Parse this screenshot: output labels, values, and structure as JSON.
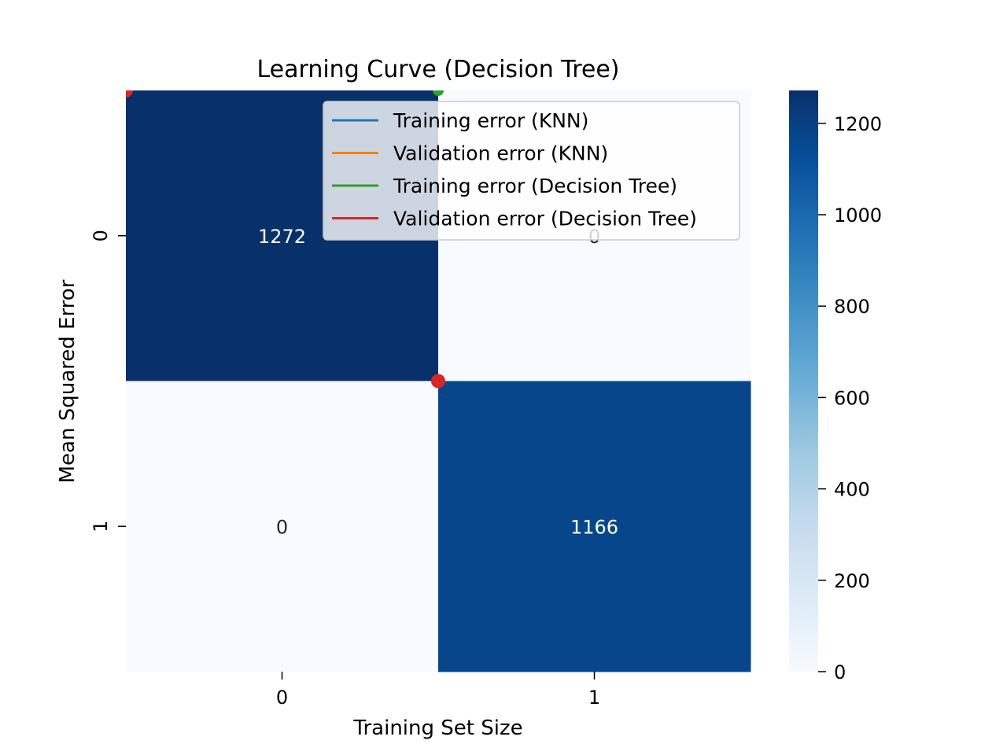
{
  "chart_data": {
    "type": "heatmap",
    "title": "Learning Curve (Decision Tree)",
    "xlabel": "Training Set Size",
    "ylabel": "Mean Squared Error",
    "x_tick_labels": [
      "0",
      "1"
    ],
    "y_tick_labels": [
      "0",
      "1"
    ],
    "matrix": [
      [
        1272,
        0
      ],
      [
        0,
        1166
      ]
    ],
    "cell_labels": [
      [
        "1272",
        "0"
      ],
      [
        "0",
        "1166"
      ]
    ],
    "colormap": "Blues",
    "colorbar": {
      "range": [
        0,
        1272
      ],
      "ticks": [
        0,
        200,
        400,
        600,
        800,
        1000,
        1200
      ],
      "tick_labels": [
        "0",
        "200",
        "400",
        "600",
        "800",
        "1000",
        "1200"
      ]
    },
    "legend": {
      "placement": "upper-right",
      "entries": [
        {
          "label": "Training error (KNN)",
          "color": "#1f77b4"
        },
        {
          "label": "Validation error (KNN)",
          "color": "#ff7f0e"
        },
        {
          "label": "Training error (Decision Tree)",
          "color": "#2ca02c"
        },
        {
          "label": "Validation error (Decision Tree)",
          "color": "#d62728"
        }
      ]
    },
    "overlay_series": [
      {
        "label": "Training error (Decision Tree)",
        "color": "#2ca02c",
        "points": [
          {
            "x": 1,
            "y": 0
          }
        ]
      },
      {
        "label": "Validation error (Decision Tree)",
        "color": "#d62728",
        "points": [
          {
            "x": 0,
            "y": 0
          },
          {
            "x": 1,
            "y": 1
          }
        ]
      }
    ]
  }
}
